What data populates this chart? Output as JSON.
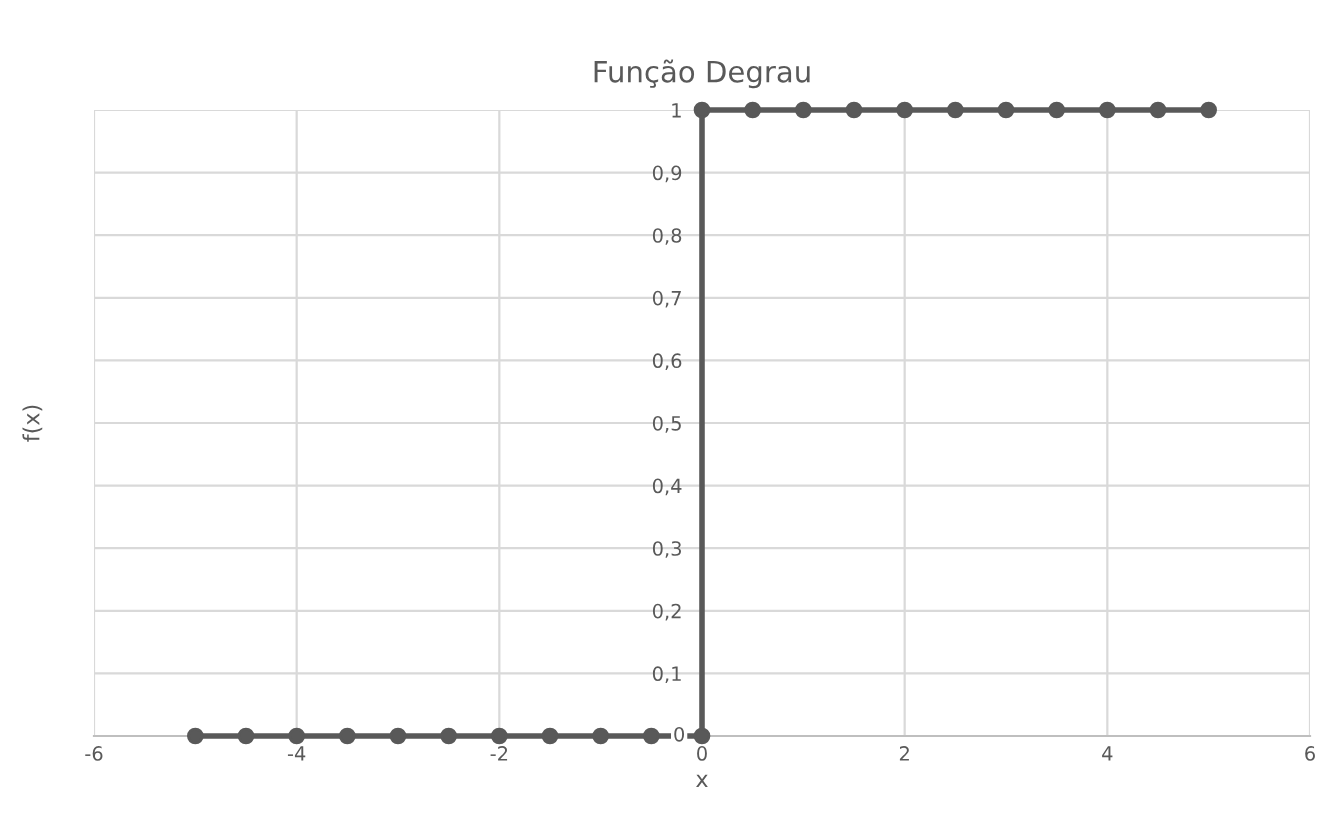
{
  "chart_data": {
    "type": "line",
    "title": "Função Degrau",
    "xlabel": "x",
    "ylabel": "f(x)",
    "x": [
      -5,
      -4.5,
      -4,
      -3.5,
      -3,
      -2.5,
      -2,
      -1.5,
      -1,
      -0.5,
      0,
      0,
      0.5,
      1,
      1.5,
      2,
      2.5,
      3,
      3.5,
      4,
      4.5,
      5
    ],
    "series": [
      {
        "color": "#595959",
        "values": [
          0,
          0,
          0,
          0,
          0,
          0,
          0,
          0,
          0,
          0,
          0,
          1,
          1,
          1,
          1,
          1,
          1,
          1,
          1,
          1,
          1,
          1
        ]
      }
    ],
    "xlim": [
      -6,
      6
    ],
    "xticks": [
      {
        "value": -6,
        "label": "-6"
      },
      {
        "value": -4,
        "label": "-4"
      },
      {
        "value": -2,
        "label": "-2"
      },
      0,
      2,
      4,
      6
    ],
    "ylim": [
      0,
      1
    ],
    "yticks": [
      0,
      {
        "value": 0.1,
        "label": "0,1"
      },
      {
        "value": 0.2,
        "label": "0,2"
      },
      {
        "value": 0.3,
        "label": "0,3"
      },
      {
        "value": 0.4,
        "label": "0,4"
      },
      {
        "value": 0.5,
        "label": "0,5"
      },
      {
        "value": 0.6,
        "label": "0,6"
      },
      {
        "value": 0.7,
        "label": "0,7"
      },
      {
        "value": 0.8,
        "label": "0,8"
      },
      {
        "value": 0.9,
        "label": "0,9"
      },
      1
    ],
    "grid": true,
    "marker": "circle",
    "line_style": "solid",
    "legend": false
  }
}
